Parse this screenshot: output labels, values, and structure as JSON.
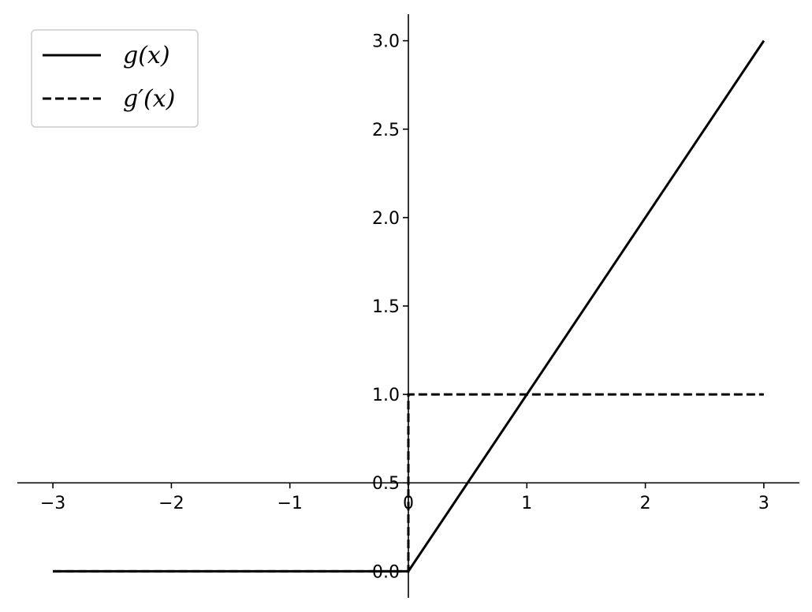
{
  "chart_data": {
    "type": "line",
    "title": "",
    "xlabel": "",
    "ylabel": "",
    "xlim": [
      -3.3,
      3.3
    ],
    "ylim": [
      -0.15,
      3.15
    ],
    "xticks": [
      -3,
      -2,
      -1,
      0,
      1,
      2,
      3
    ],
    "xtick_labels": [
      "−3",
      "−2",
      "−1",
      "0",
      "1",
      "2",
      "3"
    ],
    "yticks": [
      0.0,
      0.5,
      1.0,
      1.5,
      2.0,
      2.5,
      3.0
    ],
    "ytick_labels": [
      "0.0",
      "0.5",
      "1.0",
      "1.5",
      "2.0",
      "2.5",
      "3.0"
    ],
    "grid": false,
    "legend_position": "top-left",
    "spines": "centered at x=0 and y=0.5",
    "series": [
      {
        "name": "g(x)",
        "line_style": "solid",
        "color": "#000000",
        "x": [
          -3,
          0,
          3
        ],
        "y": [
          0,
          0,
          3
        ]
      },
      {
        "name": "g′(x)",
        "line_style": "dashed",
        "color": "#000000",
        "x": [
          -3,
          0,
          0,
          3
        ],
        "y": [
          0,
          0,
          1,
          1
        ]
      }
    ]
  }
}
